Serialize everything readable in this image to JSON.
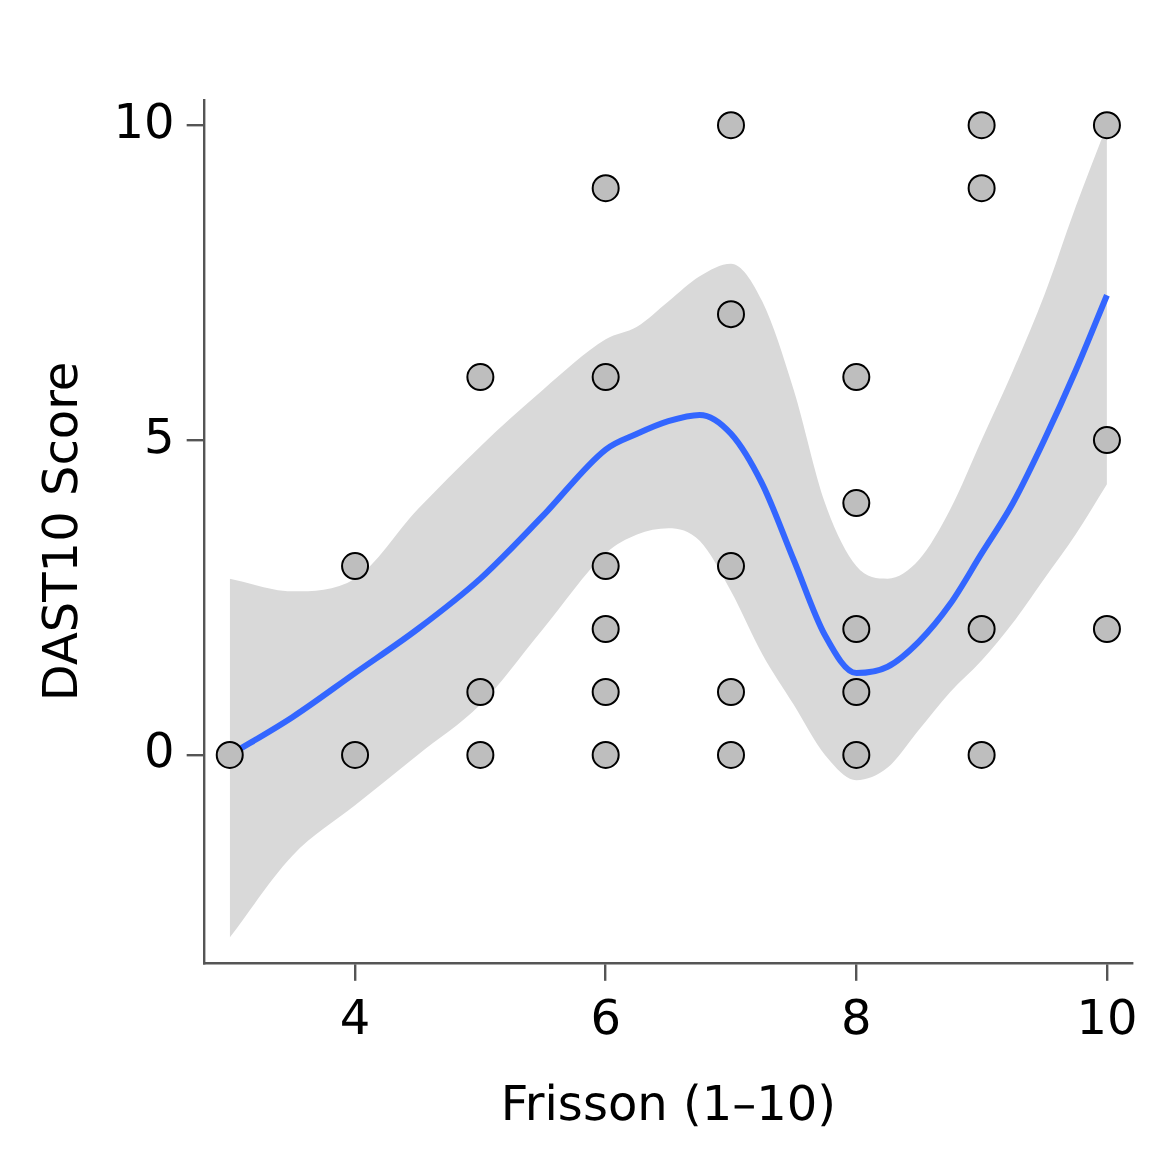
{
  "chart_data": {
    "type": "scatter",
    "xlabel": "Frisson (1–10)",
    "ylabel": "DAST10 Score",
    "xlim": [
      2.8,
      10.2
    ],
    "ylim": [
      -3.3,
      10.4
    ],
    "xticks": [
      4,
      6,
      8,
      10
    ],
    "yticks": [
      0,
      5,
      10
    ],
    "grid": false,
    "legend": false,
    "series": [
      {
        "marker": "circle",
        "color": "#bebebe",
        "x": [
          3,
          4,
          4,
          5,
          5,
          5,
          6,
          6,
          6,
          6,
          6,
          6,
          7,
          7,
          7,
          7,
          7,
          8,
          8,
          8,
          8,
          8,
          9,
          9,
          9,
          9,
          10,
          10,
          10
        ],
        "values": [
          0,
          3,
          0,
          6,
          1,
          0,
          9,
          6,
          3,
          2,
          1,
          0,
          10,
          7,
          3,
          1,
          0,
          6,
          4,
          2,
          1,
          0,
          10,
          9,
          2,
          0,
          10,
          5,
          2
        ]
      },
      {
        "type": "line",
        "marker": "none",
        "color": "#3366ff",
        "line_style": "solid",
        "x": [
          3,
          3.5,
          4,
          4.5,
          5,
          5.5,
          6,
          6.25,
          6.5,
          6.75,
          7,
          7.25,
          7.5,
          7.75,
          8,
          8.25,
          8.5,
          8.75,
          9,
          9.25,
          9.5,
          9.75,
          10
        ],
        "values": [
          0,
          0.6,
          1.3,
          2,
          2.8,
          3.8,
          4.85,
          5.1,
          5.3,
          5.4,
          5.1,
          4.3,
          3.1,
          1.9,
          1.3,
          1.4,
          1.8,
          2.4,
          3.2,
          4,
          5,
          6.1,
          7.3
        ],
        "lower": [
          -2.9,
          -1.6,
          -0.8,
          0,
          0.8,
          2,
          3.2,
          3.5,
          3.6,
          3.4,
          2.6,
          1.6,
          0.8,
          0,
          -0.4,
          -0.2,
          0.4,
          1,
          1.5,
          2.1,
          2.8,
          3.5,
          4.3
        ],
        "upper": [
          2.8,
          2.6,
          2.8,
          3.9,
          4.9,
          5.8,
          6.6,
          6.8,
          7.2,
          7.6,
          7.8,
          7.2,
          5.8,
          4,
          3,
          2.8,
          3.1,
          3.9,
          5,
          6.1,
          7.3,
          8.7,
          10
        ]
      }
    ]
  }
}
